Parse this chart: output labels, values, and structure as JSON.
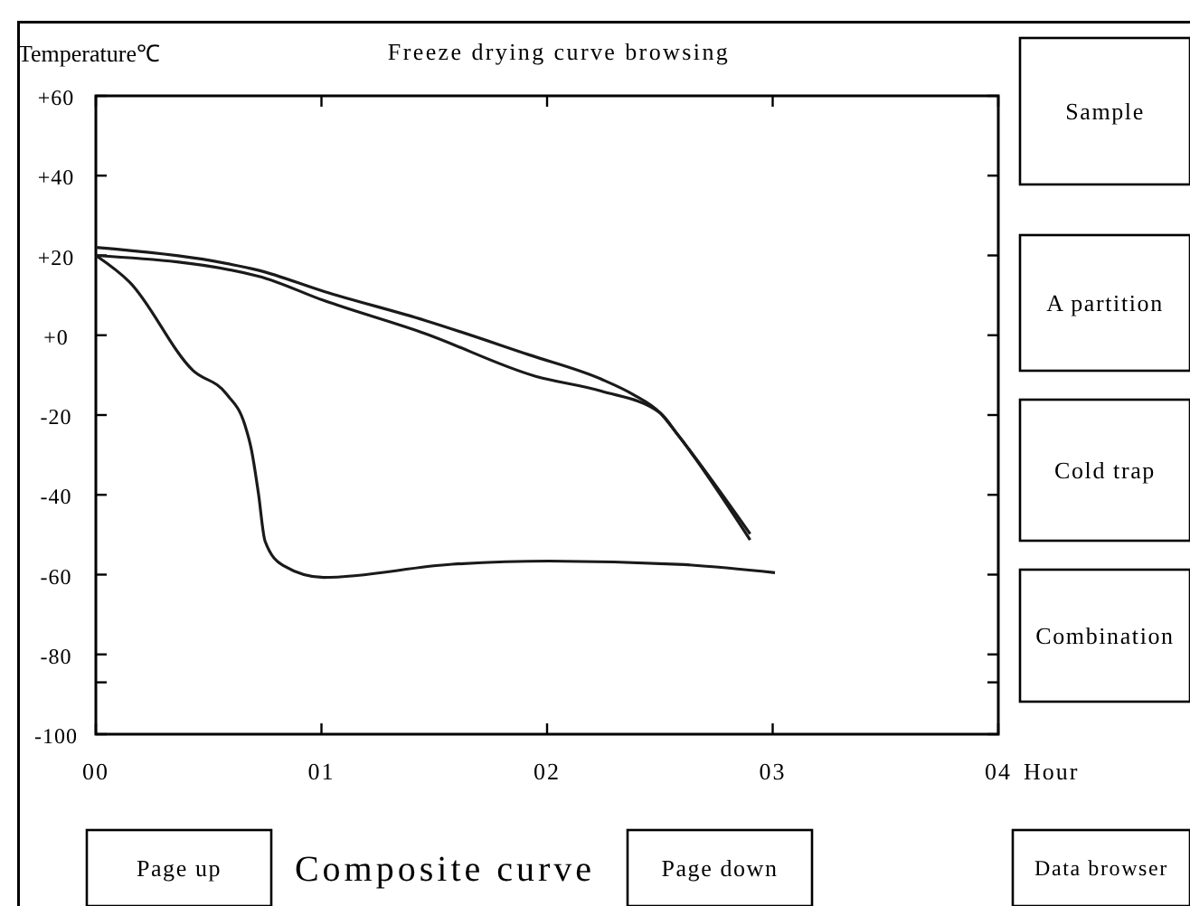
{
  "chart_data": {
    "type": "line",
    "title": "Freeze drying curve browsing",
    "xlabel": "Hour",
    "ylabel": "Temperature℃",
    "xlim": [
      0,
      4
    ],
    "xticks": [
      {
        "value": 0,
        "label": "00"
      },
      {
        "value": 1,
        "label": "01"
      },
      {
        "value": 2,
        "label": "02"
      },
      {
        "value": 3,
        "label": "03"
      },
      {
        "value": 4,
        "label": "04"
      }
    ],
    "ylim": [
      -100,
      60
    ],
    "yticks": [
      {
        "value": 60,
        "label": "+60"
      },
      {
        "value": 40,
        "label": "+40"
      },
      {
        "value": 20,
        "label": "+20"
      },
      {
        "value": 0,
        "label": "+0"
      },
      {
        "value": -20,
        "label": "-20"
      },
      {
        "value": -40,
        "label": "-40"
      },
      {
        "value": -60,
        "label": "-60"
      },
      {
        "value": -80,
        "label": "-80"
      },
      {
        "value": -87,
        "label": null
      },
      {
        "value": -100,
        "label": "-100"
      }
    ],
    "grid": false,
    "series": [
      {
        "color": "#1a1a1a",
        "x": [
          0,
          0.52,
          0.72,
          1.01,
          1.46,
          1.92,
          2.24,
          2.38,
          2.5,
          2.58,
          2.9
        ],
        "values": [
          22,
          18.6,
          16.3,
          11,
          3.7,
          -4.9,
          -11,
          -14.8,
          -19.4,
          -25,
          -49.8
        ]
      },
      {
        "color": "#1a1a1a",
        "x": [
          0,
          0.72,
          1.01,
          1.46,
          1.95,
          2.24,
          2.5,
          2.58,
          2.9
        ],
        "values": [
          20,
          14.8,
          8.7,
          0.4,
          -10.3,
          -14,
          -19.4,
          -25,
          -51.3
        ]
      },
      {
        "color": "#1a1a1a",
        "x": [
          0,
          0.15,
          0.43,
          0.58,
          0.66,
          0.69,
          0.72,
          0.75,
          0.83,
          1.01,
          1.58,
          2.01,
          2.58,
          3.01
        ],
        "values": [
          20,
          13.3,
          -8.8,
          -14.8,
          -22.4,
          -28.8,
          -39.4,
          -51.6,
          -57.7,
          -60.7,
          -57.4,
          -56.6,
          -57.4,
          -59.5
        ]
      }
    ],
    "annotations": [
      "Sample",
      "A partition",
      "Cold trap",
      "Combination",
      "Page up",
      "Composite curve",
      "Page down",
      "Data browser"
    ]
  }
}
